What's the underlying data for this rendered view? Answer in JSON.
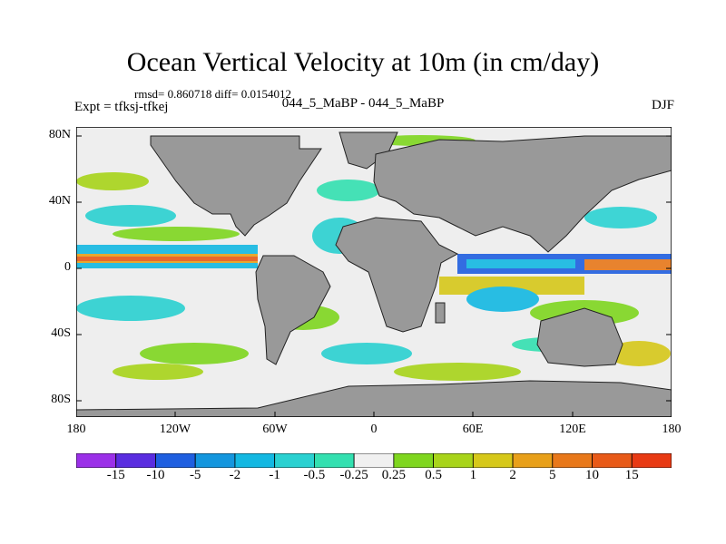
{
  "title": "Ocean Vertical Velocity at 10m (in cm/day)",
  "stats": "rmsd= 0.860718 diff= 0.0154012",
  "experiment": "Expt = tfksj-tfkej",
  "period": "044_5_MaBP - 044_5_MaBP",
  "season": "DJF",
  "y_ticks": [
    "80N",
    "40N",
    "0",
    "40S",
    "80S"
  ],
  "x_ticks": [
    "180",
    "120W",
    "60W",
    "0",
    "60E",
    "120E",
    "180"
  ],
  "colorbar": {
    "labels": [
      "-15",
      "-10",
      "-5",
      "-2",
      "-1",
      "-0.5",
      "-0.25",
      "0.25",
      "0.5",
      "1",
      "2",
      "5",
      "10",
      "15"
    ],
    "colors": [
      "#9b30e8",
      "#5a2de0",
      "#1f5fe0",
      "#1496de",
      "#13b8e2",
      "#2ad1d1",
      "#33e0b0",
      "#f0f0f0",
      "#7fd61f",
      "#a8d41a",
      "#d6c81a",
      "#e8a01a",
      "#e8781a",
      "#e85a18",
      "#e83a14"
    ]
  },
  "colors": {
    "land": "#999999",
    "ocean_background": "#eeeeee"
  }
}
